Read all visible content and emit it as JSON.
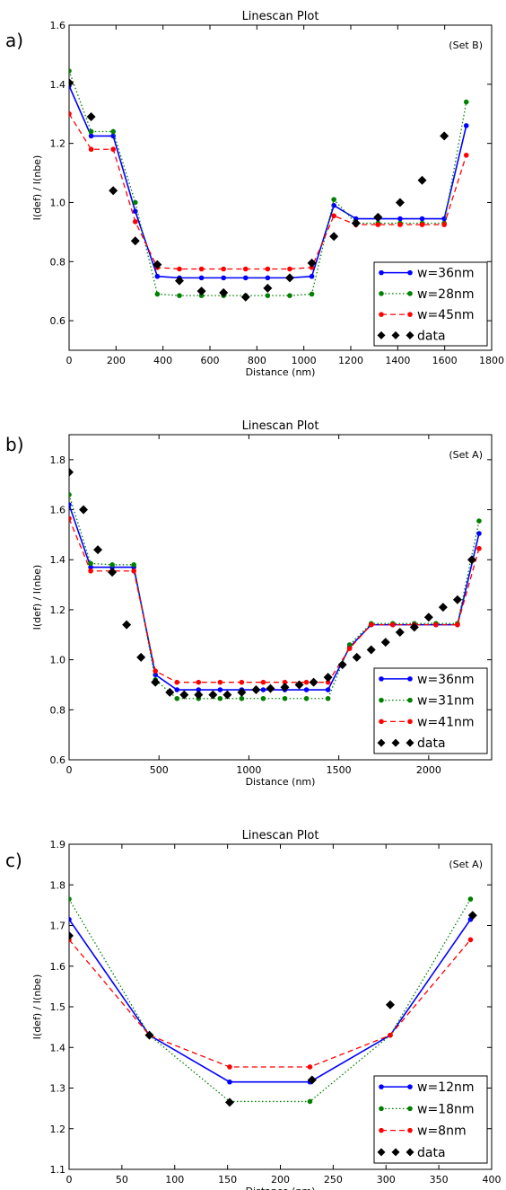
{
  "panels": [
    {
      "panel_label": "a)",
      "set_label": "(Set B)",
      "chart_data": {
        "type": "line",
        "title": "Linescan Plot",
        "xlabel": "Distance (nm)",
        "ylabel": "I(def) / I(nbe)",
        "xlim": [
          0,
          1800
        ],
        "ylim": [
          0.5,
          1.6
        ],
        "xticks": [
          0,
          200,
          400,
          600,
          800,
          1000,
          1200,
          1400,
          1600,
          1800
        ],
        "yticks": [
          0.6,
          0.8,
          1.0,
          1.2,
          1.4,
          1.6
        ],
        "ytick_labels": [
          "0.6",
          "0.8",
          "1.0",
          "1.2",
          "1.4",
          "1.6"
        ],
        "grid": false,
        "legend_position": "bottom-right",
        "series": [
          {
            "name": "w=36nm",
            "color": "#0000ff",
            "style": "solid",
            "x": [
              0,
              94,
              188,
              282,
              376,
              470,
              564,
              658,
              752,
              846,
              940,
              1034,
              1128,
              1222,
              1316,
              1410,
              1504,
              1598,
              1692
            ],
            "y": [
              1.395,
              1.225,
              1.225,
              0.97,
              0.75,
              0.745,
              0.745,
              0.745,
              0.745,
              0.745,
              0.745,
              0.75,
              0.99,
              0.945,
              0.945,
              0.945,
              0.945,
              0.945,
              1.26
            ]
          },
          {
            "name": "w=28nm",
            "color": "#008000",
            "style": "dotted",
            "x": [
              0,
              94,
              188,
              282,
              376,
              470,
              564,
              658,
              752,
              846,
              940,
              1034,
              1128,
              1222,
              1316,
              1410,
              1504,
              1598,
              1692
            ],
            "y": [
              1.445,
              1.24,
              1.24,
              1.0,
              0.69,
              0.685,
              0.685,
              0.685,
              0.685,
              0.685,
              0.685,
              0.69,
              1.01,
              0.93,
              0.93,
              0.93,
              0.93,
              0.93,
              1.34
            ]
          },
          {
            "name": "w=45nm",
            "color": "#ff0000",
            "style": "dashed",
            "x": [
              0,
              94,
              188,
              282,
              376,
              470,
              564,
              658,
              752,
              846,
              940,
              1034,
              1128,
              1222,
              1316,
              1410,
              1504,
              1598,
              1692
            ],
            "y": [
              1.3,
              1.18,
              1.18,
              0.935,
              0.78,
              0.775,
              0.775,
              0.775,
              0.775,
              0.775,
              0.775,
              0.78,
              0.955,
              0.925,
              0.925,
              0.925,
              0.925,
              0.925,
              1.16
            ]
          },
          {
            "name": "data",
            "color": "#000000",
            "style": "markers",
            "x": [
              0,
              94,
              188,
              282,
              376,
              470,
              564,
              658,
              752,
              846,
              940,
              1034,
              1128,
              1222,
              1316,
              1410,
              1504,
              1598,
              1692
            ],
            "y": [
              1.405,
              1.29,
              1.04,
              0.87,
              0.79,
              0.735,
              0.7,
              0.695,
              0.68,
              0.71,
              0.745,
              0.795,
              0.885,
              0.93,
              0.95,
              1.0,
              1.075,
              1.225,
              1.625
            ]
          }
        ]
      }
    },
    {
      "panel_label": "b)",
      "set_label": "(Set A)",
      "chart_data": {
        "type": "line",
        "title": "Linescan Plot",
        "xlabel": "Distance (nm)",
        "ylabel": "I(def) / I(nbe)",
        "xlim": [
          0,
          2350
        ],
        "ylim": [
          0.6,
          1.9
        ],
        "xticks": [
          0,
          500,
          1000,
          1500,
          2000
        ],
        "yticks": [
          0.6,
          0.8,
          1.0,
          1.2,
          1.4,
          1.6,
          1.8
        ],
        "ytick_labels": [
          "0.6",
          "0.8",
          "1.0",
          "1.2",
          "1.4",
          "1.6",
          "1.8"
        ],
        "grid": false,
        "legend_position": "bottom-right",
        "series": [
          {
            "name": "w=36nm",
            "color": "#0000ff",
            "style": "solid",
            "x": [
              0,
              120,
              240,
              360,
              480,
              600,
              720,
              840,
              960,
              1080,
              1200,
              1320,
              1440,
              1560,
              1680,
              1800,
              1920,
              2040,
              2160,
              2280
            ],
            "y": [
              1.62,
              1.37,
              1.37,
              1.37,
              0.94,
              0.88,
              0.88,
              0.88,
              0.88,
              0.88,
              0.88,
              0.88,
              0.88,
              1.05,
              1.14,
              1.14,
              1.14,
              1.14,
              1.14,
              1.505
            ]
          },
          {
            "name": "w=31nm",
            "color": "#008000",
            "style": "dotted",
            "x": [
              0,
              120,
              240,
              360,
              480,
              600,
              720,
              840,
              960,
              1080,
              1200,
              1320,
              1440,
              1560,
              1680,
              1800,
              1920,
              2040,
              2160,
              2280
            ],
            "y": [
              1.66,
              1.385,
              1.38,
              1.38,
              0.92,
              0.845,
              0.845,
              0.845,
              0.845,
              0.845,
              0.845,
              0.845,
              0.845,
              1.06,
              1.145,
              1.145,
              1.145,
              1.145,
              1.145,
              1.555
            ]
          },
          {
            "name": "w=41nm",
            "color": "#ff0000",
            "style": "dashed",
            "x": [
              0,
              120,
              240,
              360,
              480,
              600,
              720,
              840,
              960,
              1080,
              1200,
              1320,
              1440,
              1560,
              1680,
              1800,
              1920,
              2040,
              2160,
              2280
            ],
            "y": [
              1.565,
              1.355,
              1.355,
              1.355,
              0.955,
              0.91,
              0.91,
              0.91,
              0.91,
              0.91,
              0.91,
              0.91,
              0.91,
              1.045,
              1.14,
              1.14,
              1.14,
              1.14,
              1.14,
              1.445
            ]
          },
          {
            "name": "data",
            "color": "#000000",
            "style": "markers",
            "x": [
              0,
              80,
              160,
              240,
              320,
              400,
              480,
              560,
              640,
              720,
              800,
              880,
              960,
              1040,
              1120,
              1200,
              1280,
              1360,
              1440,
              1520,
              1600,
              1680,
              1760,
              1840,
              1920,
              2000,
              2080,
              2160,
              2240
            ],
            "y": [
              1.75,
              1.6,
              1.44,
              1.35,
              1.14,
              1.01,
              0.91,
              0.87,
              0.86,
              0.86,
              0.86,
              0.86,
              0.87,
              0.88,
              0.885,
              0.89,
              0.9,
              0.91,
              0.93,
              0.98,
              1.01,
              1.04,
              1.07,
              1.11,
              1.13,
              1.17,
              1.21,
              1.24,
              1.4
            ]
          }
        ]
      }
    },
    {
      "panel_label": "c)",
      "set_label": "(Set A)",
      "chart_data": {
        "type": "line",
        "title": "Linescan Plot",
        "xlabel": "Distance (nm)",
        "ylabel": "I(def) / I(nbe)",
        "xlim": [
          0,
          400
        ],
        "ylim": [
          1.1,
          1.9
        ],
        "xticks": [
          0,
          50,
          100,
          150,
          200,
          250,
          300,
          350,
          400
        ],
        "yticks": [
          1.1,
          1.2,
          1.3,
          1.4,
          1.5,
          1.6,
          1.7,
          1.8,
          1.9
        ],
        "ytick_labels": [
          "1.1",
          "1.2",
          "1.3",
          "1.4",
          "1.5",
          "1.6",
          "1.7",
          "1.8",
          "1.9"
        ],
        "grid": false,
        "legend_position": "bottom-right",
        "series": [
          {
            "name": "w=12nm",
            "color": "#0000ff",
            "style": "solid",
            "x": [
              0,
              76,
              152,
              228,
              304,
              380
            ],
            "y": [
              1.715,
              1.43,
              1.315,
              1.315,
              1.43,
              1.715
            ]
          },
          {
            "name": "w=18nm",
            "color": "#008000",
            "style": "dotted",
            "x": [
              0,
              76,
              152,
              228,
              304,
              380
            ],
            "y": [
              1.765,
              1.43,
              1.267,
              1.267,
              1.43,
              1.765
            ]
          },
          {
            "name": "w=8nm",
            "color": "#ff0000",
            "style": "dashed",
            "x": [
              0,
              76,
              152,
              228,
              304,
              380
            ],
            "y": [
              1.665,
              1.43,
              1.352,
              1.352,
              1.43,
              1.665
            ]
          },
          {
            "name": "data",
            "color": "#000000",
            "style": "markers",
            "x": [
              0,
              76,
              152,
              230,
              304,
              382
            ],
            "y": [
              1.675,
              1.43,
              1.265,
              1.32,
              1.505,
              1.725
            ]
          }
        ]
      }
    }
  ]
}
